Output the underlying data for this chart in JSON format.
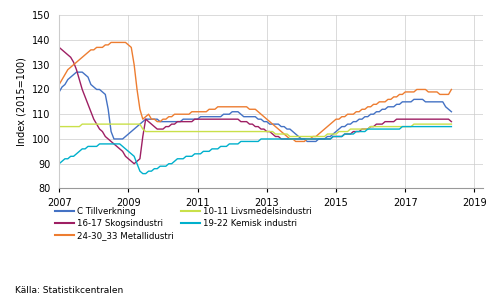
{
  "title": "",
  "ylabel": "Index (2015=100)",
  "source": "Källa: Statistikcentralen",
  "ylim": [
    80,
    150
  ],
  "yticks": [
    80,
    90,
    100,
    110,
    120,
    130,
    140,
    150
  ],
  "xlim_start": 2007.0,
  "xlim_end": 2019.25,
  "xtick_years": [
    2007,
    2009,
    2011,
    2013,
    2015,
    2017,
    2019
  ],
  "series": {
    "C Tillverkning": {
      "color": "#4472C4",
      "data": [
        119,
        121,
        122,
        124,
        125,
        126,
        127,
        127,
        127,
        126,
        125,
        122,
        121,
        120,
        120,
        119,
        118,
        112,
        103,
        100,
        100,
        100,
        100,
        101,
        102,
        103,
        104,
        105,
        106,
        107,
        108,
        108,
        108,
        108,
        108,
        107,
        107,
        107,
        107,
        107,
        107,
        107,
        107,
        108,
        108,
        108,
        108,
        108,
        108,
        109,
        109,
        109,
        109,
        109,
        109,
        109,
        109,
        110,
        110,
        110,
        111,
        111,
        111,
        110,
        109,
        109,
        109,
        109,
        109,
        108,
        108,
        107,
        107,
        106,
        106,
        106,
        106,
        105,
        105,
        104,
        104,
        103,
        102,
        101,
        100,
        100,
        99,
        99,
        99,
        99,
        100,
        100,
        100,
        101,
        101,
        102,
        103,
        104,
        105,
        105,
        106,
        106,
        107,
        107,
        108,
        108,
        109,
        109,
        110,
        110,
        111,
        111,
        112,
        112,
        113,
        113,
        113,
        114,
        114,
        115,
        115,
        115,
        115,
        116,
        116,
        116,
        116,
        115,
        115,
        115,
        115,
        115,
        115,
        115,
        113,
        112,
        111
      ]
    },
    "16-17 Skogsindustri": {
      "color": "#9E1F63",
      "data": [
        137,
        136,
        135,
        134,
        133,
        131,
        128,
        124,
        120,
        117,
        114,
        111,
        108,
        106,
        104,
        103,
        101,
        100,
        99,
        98,
        97,
        96,
        95,
        93,
        92,
        91,
        90,
        91,
        92,
        101,
        108,
        107,
        106,
        105,
        104,
        104,
        104,
        105,
        105,
        106,
        106,
        107,
        107,
        107,
        107,
        107,
        107,
        108,
        108,
        108,
        108,
        108,
        108,
        108,
        108,
        108,
        108,
        108,
        108,
        108,
        108,
        108,
        108,
        107,
        107,
        107,
        106,
        106,
        105,
        105,
        104,
        104,
        103,
        103,
        102,
        101,
        101,
        100,
        100,
        100,
        100,
        100,
        100,
        100,
        100,
        100,
        100,
        100,
        100,
        100,
        100,
        100,
        100,
        100,
        100,
        101,
        101,
        101,
        101,
        102,
        102,
        102,
        103,
        103,
        103,
        104,
        104,
        104,
        105,
        105,
        106,
        106,
        106,
        107,
        107,
        107,
        107,
        108,
        108,
        108,
        108,
        108,
        108,
        108,
        108,
        108,
        108,
        108,
        108,
        108,
        108,
        108,
        108,
        108,
        108,
        108,
        107
      ]
    },
    "24-30_33 Metallidustri": {
      "color": "#ED7D31",
      "data": [
        122,
        124,
        126,
        128,
        129,
        130,
        131,
        132,
        133,
        134,
        135,
        136,
        136,
        137,
        137,
        137,
        138,
        138,
        139,
        139,
        139,
        139,
        139,
        139,
        138,
        137,
        130,
        120,
        112,
        108,
        109,
        110,
        108,
        108,
        107,
        107,
        108,
        108,
        109,
        109,
        110,
        110,
        110,
        110,
        110,
        110,
        111,
        111,
        111,
        111,
        111,
        111,
        112,
        112,
        112,
        113,
        113,
        113,
        113,
        113,
        113,
        113,
        113,
        113,
        113,
        113,
        112,
        112,
        112,
        111,
        110,
        109,
        108,
        107,
        106,
        105,
        104,
        103,
        102,
        101,
        100,
        100,
        99,
        99,
        99,
        99,
        100,
        100,
        101,
        101,
        102,
        103,
        104,
        105,
        106,
        107,
        108,
        108,
        109,
        109,
        110,
        110,
        110,
        111,
        111,
        112,
        112,
        113,
        113,
        114,
        114,
        115,
        115,
        115,
        116,
        116,
        117,
        117,
        118,
        118,
        119,
        119,
        119,
        119,
        120,
        120,
        120,
        120,
        119,
        119,
        119,
        119,
        118,
        118,
        118,
        118,
        120
      ]
    },
    "10-11 Livsmedelsindustri": {
      "color": "#C9E04A",
      "data": [
        105,
        105,
        105,
        105,
        105,
        105,
        105,
        105,
        106,
        106,
        106,
        106,
        106,
        106,
        106,
        106,
        106,
        106,
        106,
        106,
        106,
        106,
        106,
        106,
        106,
        106,
        106,
        106,
        106,
        104,
        103,
        103,
        103,
        103,
        103,
        103,
        103,
        103,
        103,
        103,
        103,
        103,
        103,
        103,
        103,
        103,
        103,
        103,
        103,
        103,
        103,
        103,
        103,
        103,
        103,
        103,
        103,
        103,
        103,
        103,
        103,
        103,
        103,
        103,
        103,
        103,
        103,
        103,
        103,
        103,
        103,
        103,
        103,
        103,
        103,
        102,
        102,
        102,
        102,
        102,
        101,
        101,
        101,
        101,
        101,
        101,
        101,
        101,
        101,
        101,
        101,
        101,
        101,
        102,
        102,
        102,
        102,
        103,
        103,
        103,
        103,
        104,
        104,
        104,
        104,
        104,
        104,
        104,
        105,
        105,
        105,
        105,
        105,
        105,
        105,
        105,
        105,
        105,
        105,
        105,
        105,
        105,
        105,
        106,
        106,
        106,
        106,
        106,
        106,
        106,
        106,
        106,
        106,
        106,
        106,
        106,
        106
      ]
    },
    "19-22 Kemisk industri": {
      "color": "#00B0CC",
      "data": [
        90,
        91,
        92,
        92,
        93,
        93,
        94,
        95,
        96,
        96,
        97,
        97,
        97,
        97,
        98,
        98,
        98,
        98,
        98,
        98,
        98,
        98,
        97,
        96,
        95,
        94,
        93,
        90,
        87,
        86,
        86,
        87,
        87,
        88,
        88,
        89,
        89,
        89,
        90,
        90,
        91,
        92,
        92,
        92,
        93,
        93,
        93,
        94,
        94,
        94,
        95,
        95,
        95,
        96,
        96,
        96,
        97,
        97,
        97,
        98,
        98,
        98,
        98,
        99,
        99,
        99,
        99,
        99,
        99,
        99,
        100,
        100,
        100,
        100,
        100,
        100,
        100,
        100,
        100,
        100,
        100,
        100,
        100,
        100,
        100,
        100,
        100,
        100,
        100,
        100,
        100,
        100,
        100,
        100,
        100,
        101,
        101,
        101,
        101,
        102,
        102,
        102,
        102,
        103,
        103,
        103,
        103,
        104,
        104,
        104,
        104,
        104,
        104,
        104,
        104,
        104,
        104,
        104,
        104,
        105,
        105,
        105,
        105,
        105,
        105,
        105,
        105,
        105,
        105,
        105,
        105,
        105,
        105,
        105,
        105,
        105,
        105
      ]
    }
  }
}
